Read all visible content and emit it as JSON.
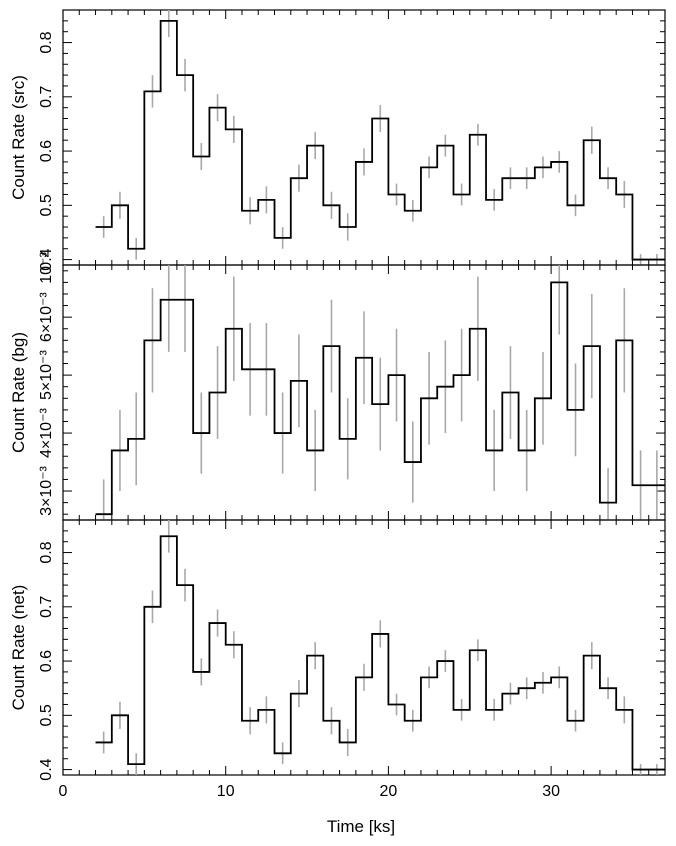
{
  "xlabel": "Time [ks]",
  "chart_data": [
    {
      "type": "line",
      "panel": "src",
      "ylabel": "Count Rate (src)",
      "xlim": [
        0,
        37
      ],
      "ylim": [
        0.39,
        0.86
      ],
      "ytick_labels": [
        "0.4",
        "0.5",
        "0.6",
        "0.7",
        "0.8"
      ],
      "ytick_values": [
        0.4,
        0.5,
        0.6,
        0.7,
        0.8
      ],
      "series": [
        {
          "bin_width": 1.0,
          "x": [
            2.5,
            3.5,
            4.5,
            5.5,
            6.5,
            7.5,
            8.5,
            9.5,
            10.5,
            11.5,
            12.5,
            13.5,
            14.5,
            15.5,
            16.5,
            17.5,
            18.5,
            19.5,
            20.5,
            21.5,
            22.5,
            23.5,
            24.5,
            25.5,
            26.5,
            27.5,
            28.5,
            29.5,
            30.5,
            31.5,
            32.5,
            33.5,
            34.5,
            35.5,
            36.5
          ],
          "y": [
            0.46,
            0.5,
            0.42,
            0.71,
            0.84,
            0.74,
            0.59,
            0.68,
            0.64,
            0.49,
            0.51,
            0.44,
            0.55,
            0.61,
            0.5,
            0.46,
            0.58,
            0.66,
            0.52,
            0.49,
            0.57,
            0.61,
            0.52,
            0.63,
            0.51,
            0.55,
            0.55,
            0.57,
            0.58,
            0.5,
            0.62,
            0.55,
            0.52,
            0.4,
            0.4
          ],
          "yerr": [
            0.02,
            0.025,
            0.02,
            0.03,
            0.03,
            0.03,
            0.025,
            0.025,
            0.025,
            0.025,
            0.025,
            0.02,
            0.025,
            0.025,
            0.025,
            0.025,
            0.025,
            0.025,
            0.02,
            0.02,
            0.02,
            0.02,
            0.02,
            0.02,
            0.02,
            0.02,
            0.02,
            0.02,
            0.02,
            0.02,
            0.025,
            0.02,
            0.025,
            0.01,
            0.01
          ]
        }
      ]
    },
    {
      "type": "line",
      "panel": "bg",
      "ylabel": "Count Rate (bg)",
      "xlim": [
        0,
        37
      ],
      "ylim": [
        0.0025,
        0.0069
      ],
      "ytick_labels": [
        "3×10⁻³",
        "4×10⁻³",
        "5×10⁻³",
        "6×10⁻³"
      ],
      "ytick_values": [
        0.003,
        0.004,
        0.005,
        0.006
      ],
      "corner_label": "10⁻³",
      "series": [
        {
          "bin_width": 1.0,
          "x": [
            2.5,
            3.5,
            4.5,
            5.5,
            6.5,
            7.5,
            8.5,
            9.5,
            10.5,
            11.5,
            12.5,
            13.5,
            14.5,
            15.5,
            16.5,
            17.5,
            18.5,
            19.5,
            20.5,
            21.5,
            22.5,
            23.5,
            24.5,
            25.5,
            26.5,
            27.5,
            28.5,
            29.5,
            30.5,
            31.5,
            32.5,
            33.5,
            34.5,
            35.5,
            36.5
          ],
          "y": [
            0.0026,
            0.0037,
            0.0039,
            0.0056,
            0.0063,
            0.0063,
            0.004,
            0.0047,
            0.0058,
            0.0051,
            0.0051,
            0.004,
            0.0049,
            0.0037,
            0.0055,
            0.0039,
            0.0053,
            0.0045,
            0.005,
            0.0035,
            0.0046,
            0.0048,
            0.005,
            0.0058,
            0.0037,
            0.0047,
            0.0037,
            0.0046,
            0.0066,
            0.0044,
            0.0055,
            0.0028,
            0.0056,
            0.0031,
            0.0031
          ],
          "yerr": [
            0.0006,
            0.0007,
            0.0008,
            0.0009,
            0.0009,
            0.0009,
            0.0007,
            0.0008,
            0.0009,
            0.0008,
            0.0008,
            0.0007,
            0.0008,
            0.0007,
            0.0008,
            0.0007,
            0.0008,
            0.0008,
            0.0008,
            0.0007,
            0.0008,
            0.0008,
            0.0008,
            0.0009,
            0.0007,
            0.0008,
            0.0007,
            0.0008,
            0.0009,
            0.0008,
            0.0009,
            0.0006,
            0.0009,
            0.0006,
            0.0006
          ]
        }
      ]
    },
    {
      "type": "line",
      "panel": "net",
      "ylabel": "Count Rate (net)",
      "xlim": [
        0,
        37
      ],
      "ylim": [
        0.39,
        0.86
      ],
      "ytick_labels": [
        "0.4",
        "0.5",
        "0.6",
        "0.7",
        "0.8"
      ],
      "ytick_values": [
        0.4,
        0.5,
        0.6,
        0.7,
        0.8
      ],
      "xtick_labels": [
        "0",
        "10",
        "20",
        "30"
      ],
      "xtick_values": [
        0,
        10,
        20,
        30
      ],
      "series": [
        {
          "bin_width": 1.0,
          "x": [
            2.5,
            3.5,
            4.5,
            5.5,
            6.5,
            7.5,
            8.5,
            9.5,
            10.5,
            11.5,
            12.5,
            13.5,
            14.5,
            15.5,
            16.5,
            17.5,
            18.5,
            19.5,
            20.5,
            21.5,
            22.5,
            23.5,
            24.5,
            25.5,
            26.5,
            27.5,
            28.5,
            29.5,
            30.5,
            31.5,
            32.5,
            33.5,
            34.5,
            35.5,
            36.5
          ],
          "y": [
            0.45,
            0.5,
            0.41,
            0.7,
            0.83,
            0.74,
            0.58,
            0.67,
            0.63,
            0.49,
            0.51,
            0.43,
            0.54,
            0.61,
            0.49,
            0.45,
            0.57,
            0.65,
            0.52,
            0.49,
            0.57,
            0.6,
            0.51,
            0.62,
            0.51,
            0.54,
            0.55,
            0.56,
            0.57,
            0.49,
            0.61,
            0.55,
            0.51,
            0.4,
            0.4
          ],
          "yerr": [
            0.02,
            0.025,
            0.02,
            0.03,
            0.03,
            0.03,
            0.025,
            0.025,
            0.025,
            0.025,
            0.025,
            0.02,
            0.025,
            0.025,
            0.025,
            0.025,
            0.025,
            0.025,
            0.02,
            0.02,
            0.02,
            0.02,
            0.02,
            0.02,
            0.02,
            0.02,
            0.02,
            0.02,
            0.02,
            0.02,
            0.025,
            0.02,
            0.025,
            0.01,
            0.01
          ]
        }
      ]
    }
  ]
}
